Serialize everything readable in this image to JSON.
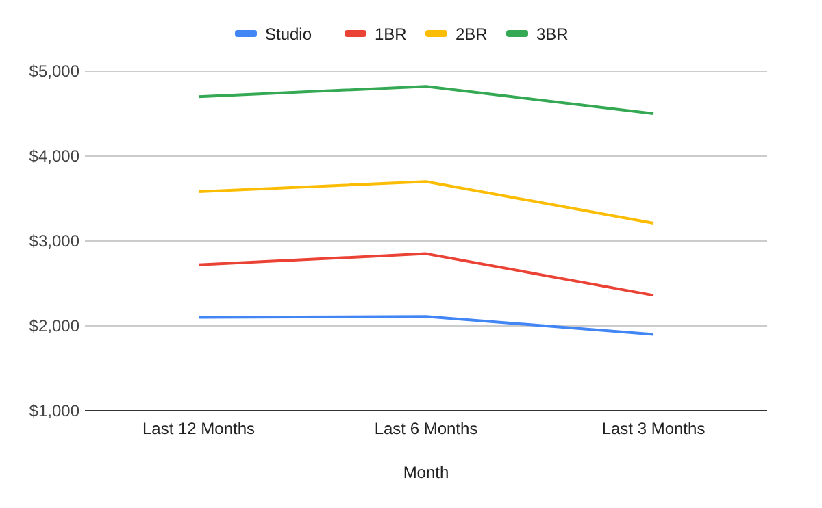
{
  "chart_data": {
    "type": "line",
    "xlabel": "Month",
    "categories": [
      "Last 12 Months",
      "Last 6 Months",
      "Last 3 Months"
    ],
    "series": [
      {
        "name": "Studio",
        "color": "#4285f4",
        "values": [
          2100,
          2110,
          1900
        ]
      },
      {
        "name": "1BR",
        "color": "#ea4335",
        "values": [
          2720,
          2850,
          2360
        ]
      },
      {
        "name": "2BR",
        "color": "#fbbc04",
        "values": [
          3580,
          3700,
          3210
        ]
      },
      {
        "name": "3BR",
        "color": "#34a853",
        "values": [
          4700,
          4820,
          4500
        ]
      }
    ],
    "ylim": [
      1000,
      5000
    ],
    "yticks": [
      {
        "value": 1000,
        "label": "$1,000"
      },
      {
        "value": 2000,
        "label": "$2,000"
      },
      {
        "value": 3000,
        "label": "$3,000"
      },
      {
        "value": 4000,
        "label": "$4,000"
      },
      {
        "value": 5000,
        "label": "$5,000"
      }
    ],
    "grid": "y",
    "legend": "top",
    "marker": "none",
    "line_style": "solid"
  }
}
